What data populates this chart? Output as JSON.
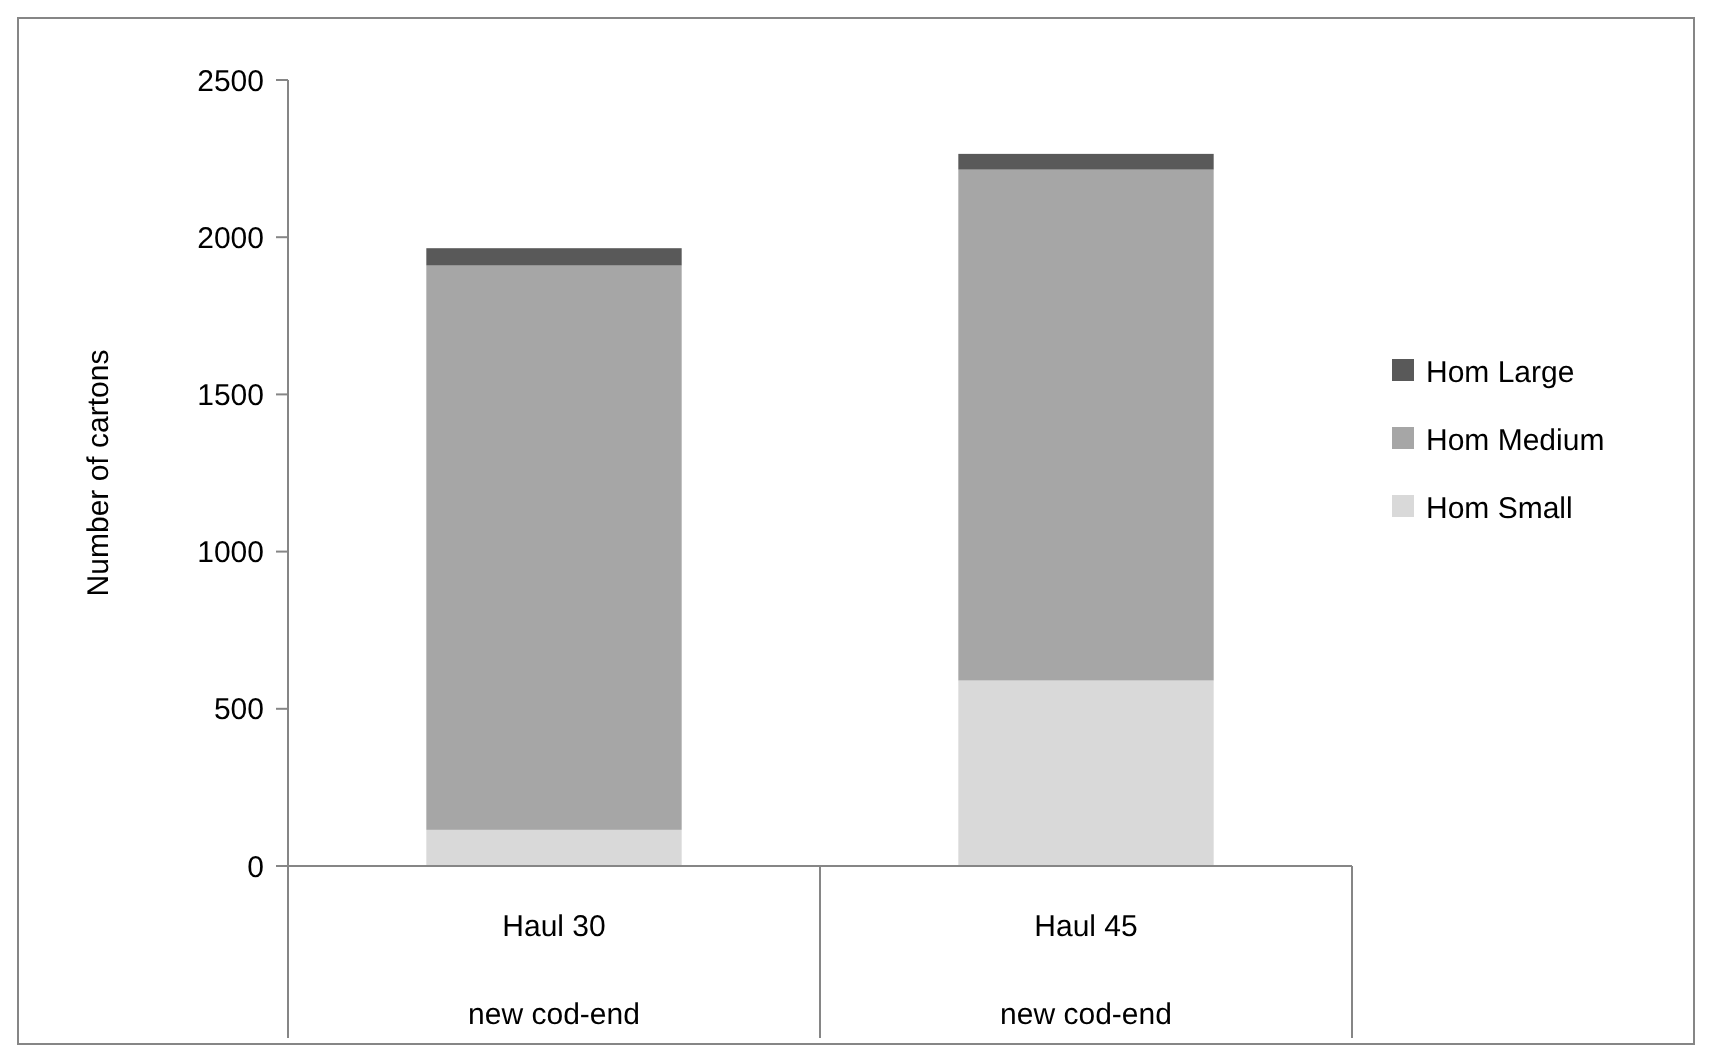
{
  "chart_data": {
    "type": "bar",
    "stacked": true,
    "ylabel": "Number of cartons",
    "categories": [
      "Haul 30\nnew cod-end",
      "Haul 45\nnew cod-end"
    ],
    "series": [
      {
        "name": "Hom Small",
        "color": "#d9d9d9",
        "values": [
          115,
          590
        ]
      },
      {
        "name": "Hom Medium",
        "color": "#a6a6a6",
        "values": [
          1795,
          1625
        ]
      },
      {
        "name": "Hom Large",
        "color": "#595959",
        "values": [
          55,
          50
        ]
      }
    ],
    "ylim": [
      0,
      2500
    ],
    "yticks": [
      0,
      500,
      1000,
      1500,
      2000,
      2500
    ],
    "grid": false,
    "legend": "right"
  }
}
